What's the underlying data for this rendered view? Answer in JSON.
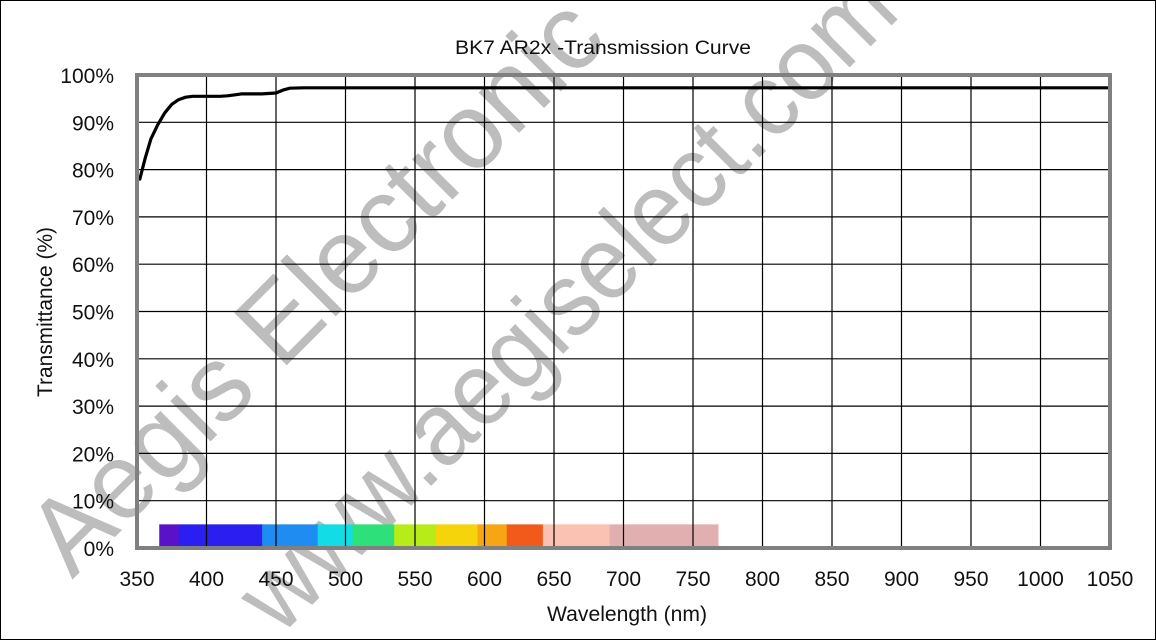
{
  "chart_data": {
    "type": "line",
    "title": "BK7 AR2x -Transmission Curve",
    "xlabel": "Wavelength (nm)",
    "ylabel": "Transmittance (%)",
    "xlim": [
      350,
      1050
    ],
    "ylim": [
      0,
      100
    ],
    "x_ticks": [
      "350",
      "400",
      "450",
      "500",
      "550",
      "600",
      "650",
      "700",
      "750",
      "800",
      "850",
      "900",
      "950",
      "1000",
      "1050"
    ],
    "y_ticks": [
      "0%",
      "10%",
      "20%",
      "30%",
      "40%",
      "50%",
      "60%",
      "70%",
      "80%",
      "90%",
      "100%"
    ],
    "grid": true,
    "series": [
      {
        "color": "#000000",
        "x": [
          352,
          356,
          360,
          365,
          370,
          375,
          380,
          385,
          390,
          395,
          400,
          410,
          415,
          420,
          425,
          430,
          440,
          450,
          455,
          460,
          470,
          500,
          600,
          700,
          800,
          900,
          1000,
          1048
        ],
        "y": [
          78,
          82.5,
          86.5,
          89.5,
          92,
          93.8,
          94.8,
          95.3,
          95.5,
          95.5,
          95.5,
          95.5,
          95.6,
          95.8,
          96,
          96,
          96,
          96.2,
          96.8,
          97.2,
          97.3,
          97.3,
          97.3,
          97.3,
          97.3,
          97.3,
          97.3,
          97.3
        ]
      }
    ],
    "spectrum_band": {
      "x_range": [
        366,
        768
      ],
      "y_range": [
        0,
        5
      ],
      "segments": [
        {
          "from": 366,
          "to": 380,
          "color": "#5a12c8"
        },
        {
          "from": 380,
          "to": 440,
          "color": "#2b1ef0"
        },
        {
          "from": 440,
          "to": 480,
          "color": "#1f8cf2"
        },
        {
          "from": 480,
          "to": 505,
          "color": "#12dde6"
        },
        {
          "from": 505,
          "to": 535,
          "color": "#2ee07a"
        },
        {
          "from": 535,
          "to": 565,
          "color": "#b8ec18"
        },
        {
          "from": 565,
          "to": 595,
          "color": "#f5d40c"
        },
        {
          "from": 595,
          "to": 616,
          "color": "#f7a514"
        },
        {
          "from": 616,
          "to": 642,
          "color": "#f25a1c"
        },
        {
          "from": 642,
          "to": 690,
          "color": "#f9c2b2"
        },
        {
          "from": 690,
          "to": 768,
          "color": "#e2afb0"
        }
      ]
    },
    "watermark": [
      "Aegis Electronic",
      "www.aegiselect.com"
    ],
    "colors": {
      "plot_border": "#808080",
      "grid": "#000000",
      "curve": "#000000",
      "watermark": "#bdbdbd"
    }
  }
}
